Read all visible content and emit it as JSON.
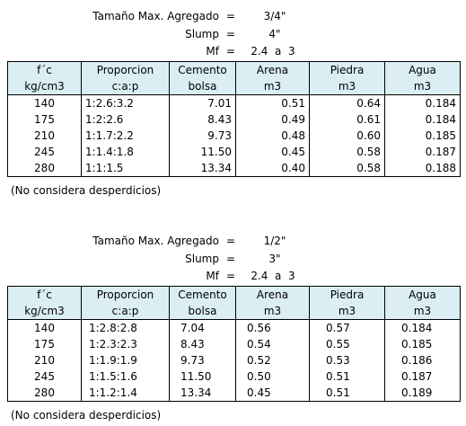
{
  "header_labels": {
    "tamano": "Tamaño Max. Agregado",
    "slump": "Slump",
    "mf": "Mf",
    "equals": "="
  },
  "columns": {
    "fc": [
      "f´c",
      "kg/cm3"
    ],
    "proporcion": [
      "Proporcion",
      "c:a:p"
    ],
    "cemento": [
      "Cemento",
      "bolsa"
    ],
    "arena": [
      "Arena",
      "m3"
    ],
    "piedra": [
      "Piedra",
      "m3"
    ],
    "agua": [
      "Agua",
      "m3"
    ]
  },
  "tables": [
    {
      "tamano_value": "3/4\"",
      "slump_value": "4\"",
      "mf_value": "2.4  a  3",
      "rows": [
        {
          "fc": "140",
          "prop": "1:2.6:3.2",
          "cemento": "7.01",
          "arena": "0.51",
          "piedra": "0.64",
          "agua": "0.184"
        },
        {
          "fc": "175",
          "prop": "1:2:2.6",
          "cemento": "8.43",
          "arena": "0.49",
          "piedra": "0.61",
          "agua": "0.184"
        },
        {
          "fc": "210",
          "prop": "1:1.7:2.2",
          "cemento": "9.73",
          "arena": "0.48",
          "piedra": "0.60",
          "agua": "0.185"
        },
        {
          "fc": "245",
          "prop": "1:1.4:1.8",
          "cemento": "11.50",
          "arena": "0.45",
          "piedra": "0.58",
          "agua": "0.187"
        },
        {
          "fc": "280",
          "prop": "1:1:1.5",
          "cemento": "13.34",
          "arena": "0.40",
          "piedra": "0.58",
          "agua": "0.188"
        }
      ],
      "note": "(No considera desperdicios)"
    },
    {
      "tamano_value": "1/2\"",
      "slump_value": "3\"",
      "mf_value": "2.4  a  3",
      "rows": [
        {
          "fc": "140",
          "prop": "1:2.8:2.8",
          "cemento": "7.04",
          "arena": "0.56",
          "piedra": "0.57",
          "agua": "0.184"
        },
        {
          "fc": "175",
          "prop": "1:2.3:2.3",
          "cemento": "8.43",
          "arena": "0.54",
          "piedra": "0.55",
          "agua": "0.185"
        },
        {
          "fc": "210",
          "prop": "1:1.9:1.9",
          "cemento": "9.73",
          "arena": "0.52",
          "piedra": "0.53",
          "agua": "0.186"
        },
        {
          "fc": "245",
          "prop": "1:1.5:1.6",
          "cemento": "11.50",
          "arena": "0.50",
          "piedra": "0.51",
          "agua": "0.187"
        },
        {
          "fc": "280",
          "prop": "1:1.2:1.4",
          "cemento": "13.34",
          "arena": "0.45",
          "piedra": "0.51",
          "agua": "0.189"
        }
      ],
      "note": "(No considera desperdicios)"
    }
  ]
}
